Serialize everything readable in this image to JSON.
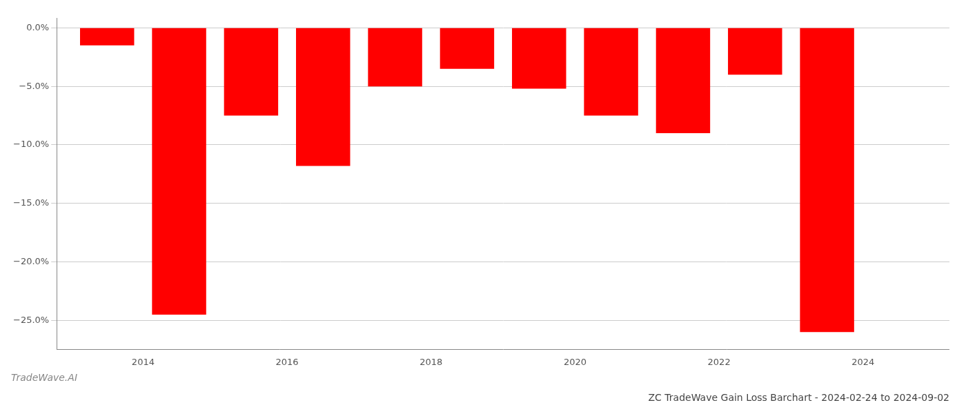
{
  "chart_data": {
    "type": "bar",
    "title": "ZC TradeWave Gain Loss Barchart - 2024-02-24 to 2024-09-02",
    "annotations": [
      "TradeWave.AI"
    ],
    "x": [
      2013.5,
      2014.5,
      2015.5,
      2016.5,
      2017.5,
      2018.5,
      2019.5,
      2020.5,
      2021.5,
      2022.5,
      2023.5
    ],
    "values": [
      -1.5,
      -24.5,
      -7.5,
      -11.8,
      -5.0,
      -3.5,
      -5.2,
      -7.5,
      -9.0,
      -4.0,
      -26.0
    ],
    "color": "#ff0000",
    "xlim": [
      2012.8,
      2025.2
    ],
    "xticks": [
      2014,
      2016,
      2018,
      2020,
      2022,
      2024
    ],
    "ylim": [
      -27.5,
      0.8
    ],
    "yticks": [
      {
        "value": 0.0,
        "label": "0.0%"
      },
      {
        "value": -5.0,
        "label": "−5.0%"
      },
      {
        "value": -10.0,
        "label": "−10.0%"
      },
      {
        "value": -15.0,
        "label": "−15.0%"
      },
      {
        "value": -20.0,
        "label": "−20.0%"
      },
      {
        "value": -25.0,
        "label": "−25.0%"
      }
    ],
    "grid": true
  }
}
